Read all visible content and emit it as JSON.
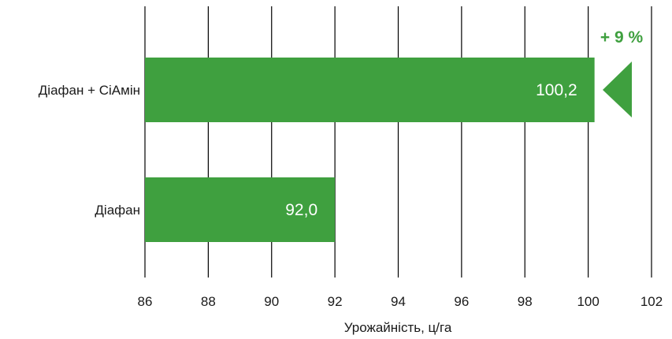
{
  "chart_data": {
    "type": "bar",
    "orientation": "horizontal",
    "categories": [
      "Діафан + СіАмін",
      "Діафан"
    ],
    "values": [
      100.2,
      92.0
    ],
    "value_labels": [
      "100,2",
      "92,0"
    ],
    "xlabel": "Урожайність, ц/га",
    "xlim": [
      86,
      102
    ],
    "xticks": [
      "86",
      "88",
      "90",
      "92",
      "94",
      "96",
      "98",
      "100",
      "102"
    ],
    "grid": "vertical",
    "bar_color": "#3fa03f",
    "annotation": {
      "text": "+ 9 %",
      "color": "#3fa03f",
      "marker": "triangle-left"
    }
  }
}
